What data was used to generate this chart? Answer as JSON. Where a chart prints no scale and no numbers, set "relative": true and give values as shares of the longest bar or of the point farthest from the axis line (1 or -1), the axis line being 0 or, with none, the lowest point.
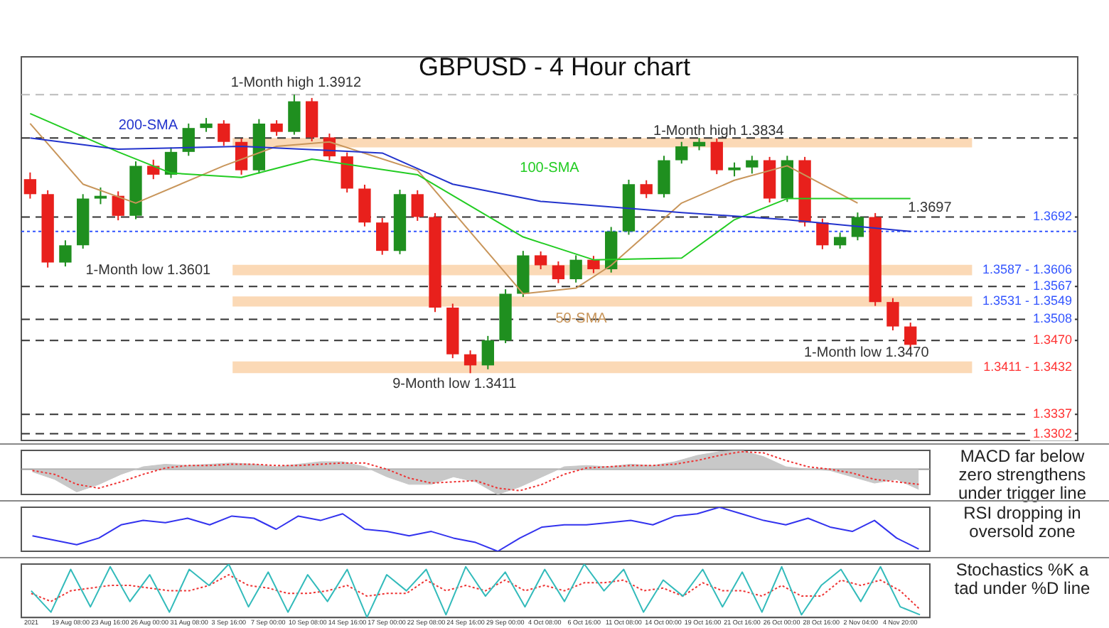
{
  "chart_data": [
    {
      "type": "candlestick",
      "title": "GBPUSD - 4 Hour chart",
      "categories": [
        null,
        null,
        null,
        null,
        null,
        null,
        null,
        null,
        null,
        null,
        null,
        null,
        null,
        null,
        null,
        null,
        null,
        null,
        null,
        null,
        null,
        null,
        null,
        null,
        null,
        null,
        null,
        null,
        null,
        null,
        null,
        null,
        null,
        null,
        null,
        null,
        null,
        null,
        null,
        null,
        null,
        null,
        null,
        null,
        null,
        null,
        null,
        null,
        null,
        null,
        null
      ],
      "ohlc": [
        [
          1.376,
          1.3772,
          1.3725,
          1.3733
        ],
        [
          1.3733,
          1.374,
          1.3601,
          1.361
        ],
        [
          1.361,
          1.365,
          1.3603,
          1.3641
        ],
        [
          1.3641,
          1.3733,
          1.3635,
          1.3725
        ],
        [
          1.3725,
          1.3745,
          1.3715,
          1.373
        ],
        [
          1.373,
          1.3738,
          1.3686,
          1.3694
        ],
        [
          1.3694,
          1.3792,
          1.3688,
          1.3784
        ],
        [
          1.3784,
          1.3795,
          1.376,
          1.3768
        ],
        [
          1.3768,
          1.3817,
          1.3762,
          1.3809
        ],
        [
          1.3809,
          1.386,
          1.3802,
          1.3852
        ],
        [
          1.3852,
          1.387,
          1.3845,
          1.386
        ],
        [
          1.386,
          1.3866,
          1.382,
          1.3827
        ],
        [
          1.3827,
          1.3833,
          1.3768,
          1.3776
        ],
        [
          1.3776,
          1.3868,
          1.377,
          1.386
        ],
        [
          1.386,
          1.3866,
          1.3838,
          1.3845
        ],
        [
          1.3845,
          1.3912,
          1.384,
          1.39
        ],
        [
          1.39,
          1.3906,
          1.3828,
          1.3835
        ],
        [
          1.3835,
          1.3842,
          1.3794,
          1.3801
        ],
        [
          1.3801,
          1.3808,
          1.3736,
          1.3743
        ],
        [
          1.3743,
          1.375,
          1.3675,
          1.3682
        ],
        [
          1.3682,
          1.369,
          1.3624,
          1.3631
        ],
        [
          1.3631,
          1.3741,
          1.3625,
          1.3733
        ],
        [
          1.3733,
          1.374,
          1.3685,
          1.3692
        ],
        [
          1.3692,
          1.3699,
          1.3521,
          1.3529
        ],
        [
          1.3529,
          1.3536,
          1.3438,
          1.3445
        ],
        [
          1.3445,
          1.3452,
          1.3411,
          1.3425
        ],
        [
          1.3425,
          1.3478,
          1.3418,
          1.347
        ],
        [
          1.347,
          1.3562,
          1.3465,
          1.3554
        ],
        [
          1.3554,
          1.3631,
          1.3548,
          1.3623
        ],
        [
          1.3623,
          1.363,
          1.3598,
          1.3605
        ],
        [
          1.3605,
          1.3612,
          1.3573,
          1.358
        ],
        [
          1.358,
          1.3623,
          1.3574,
          1.3615
        ],
        [
          1.3615,
          1.3622,
          1.3591,
          1.3598
        ],
        [
          1.3598,
          1.3674,
          1.3592,
          1.3666
        ],
        [
          1.3666,
          1.3759,
          1.366,
          1.3751
        ],
        [
          1.3751,
          1.3758,
          1.3726,
          1.3733
        ],
        [
          1.3733,
          1.3802,
          1.3727,
          1.3794
        ],
        [
          1.3794,
          1.3827,
          1.3788,
          1.3819
        ],
        [
          1.3819,
          1.3834,
          1.3812,
          1.3827
        ],
        [
          1.3827,
          1.3833,
          1.3769,
          1.3776
        ],
        [
          1.3776,
          1.379,
          1.3765,
          1.3781
        ],
        [
          1.3781,
          1.3802,
          1.377,
          1.3794
        ],
        [
          1.3794,
          1.38,
          1.3718,
          1.3725
        ],
        [
          1.3725,
          1.3802,
          1.3719,
          1.3794
        ],
        [
          1.3794,
          1.38,
          1.3675,
          1.3682
        ],
        [
          1.3682,
          1.3689,
          1.3634,
          1.3641
        ],
        [
          1.3641,
          1.3664,
          1.3635,
          1.3656
        ],
        [
          1.3656,
          1.37,
          1.365,
          1.3692
        ],
        [
          1.3692,
          1.3699,
          1.3532,
          1.3539
        ],
        [
          1.3539,
          1.3546,
          1.3488,
          1.3495
        ],
        [
          1.3495,
          1.3502,
          1.3455,
          1.3462
        ]
      ],
      "colors": [
        "#e8201c",
        "#e8201c",
        "#1f8f1f",
        "#1f8f1f",
        "#1f8f1f",
        "#e8201c",
        "#1f8f1f",
        "#e8201c",
        "#1f8f1f",
        "#1f8f1f",
        "#1f8f1f",
        "#e8201c",
        "#e8201c",
        "#1f8f1f",
        "#e8201c",
        "#1f8f1f",
        "#e8201c",
        "#e8201c",
        "#e8201c",
        "#e8201c",
        "#e8201c",
        "#1f8f1f",
        "#e8201c",
        "#e8201c",
        "#e8201c",
        "#e8201c",
        "#1f8f1f",
        "#1f8f1f",
        "#1f8f1f",
        "#e8201c",
        "#e8201c",
        "#1f8f1f",
        "#e8201c",
        "#1f8f1f",
        "#1f8f1f",
        "#e8201c",
        "#1f8f1f",
        "#1f8f1f",
        "#1f8f1f",
        "#e8201c",
        "#1f8f1f",
        "#1f8f1f",
        "#e8201c",
        "#1f8f1f",
        "#e8201c",
        "#e8201c",
        "#1f8f1f",
        "#1f8f1f",
        "#e8201c",
        "#e8201c",
        "#e8201c"
      ],
      "series": [
        {
          "type": "line",
          "name": "200-SMA",
          "color": "#2233cc",
          "values": [
            1.3834,
            null,
            null,
            null,
            null,
            1.3814,
            null,
            null,
            null,
            null,
            null,
            null,
            1.3819,
            null,
            null,
            null,
            null,
            null,
            null,
            null,
            1.3807,
            null,
            null,
            null,
            1.3751,
            null,
            null,
            null,
            null,
            1.372,
            null,
            null,
            null,
            null,
            null,
            null,
            null,
            1.37,
            null,
            null,
            null,
            null,
            null,
            1.3687,
            null,
            null,
            null,
            null,
            null,
            null,
            1.3666
          ]
        },
        {
          "type": "line",
          "name": "100-SMA",
          "color": "#22cc22",
          "values": [
            1.3878,
            null,
            null,
            null,
            null,
            1.3809,
            null,
            null,
            1.3771,
            null,
            null,
            null,
            1.3763,
            null,
            null,
            null,
            1.3796,
            null,
            null,
            null,
            null,
            null,
            1.3768,
            null,
            null,
            null,
            null,
            null,
            1.3656,
            null,
            null,
            null,
            1.3615,
            null,
            null,
            null,
            null,
            1.3618,
            null,
            null,
            1.3687,
            null,
            null,
            1.3725,
            null,
            null,
            null,
            null,
            null,
            null,
            1.3725
          ]
        },
        {
          "type": "line",
          "name": "50-SMA",
          "color": "#c8955a",
          "values": [
            1.386,
            null,
            null,
            1.3751,
            null,
            null,
            1.3717,
            null,
            null,
            null,
            null,
            1.3784,
            null,
            null,
            1.3819,
            null,
            null,
            1.3827,
            null,
            null,
            null,
            null,
            1.3776,
            null,
            null,
            null,
            null,
            null,
            1.3554,
            null,
            null,
            1.3564,
            null,
            1.3605,
            null,
            null,
            null,
            1.3717,
            null,
            null,
            1.3758,
            null,
            null,
            1.3784,
            null,
            null,
            null,
            1.3717,
            null,
            null,
            null
          ]
        }
      ],
      "ylim": [
        1.329,
        1.398
      ],
      "tick_labels": false,
      "grid": false,
      "legend": false,
      "bands": [
        {
          "axis": "y",
          "from": 1.3817,
          "to": 1.3834,
          "color": "#fbd9b6"
        },
        {
          "axis": "y",
          "from": 1.3587,
          "to": 1.3606,
          "label": "1.3587 - 1.3606",
          "color": "#fbd9b6"
        },
        {
          "axis": "y",
          "from": 1.3531,
          "to": 1.3549,
          "label": "1.3531 - 1.3549",
          "color": "#fbd9b6"
        },
        {
          "axis": "y",
          "from": 1.3411,
          "to": 1.3432,
          "label": "1.3411 - 1.3432",
          "color": "#fbd9b6"
        }
      ],
      "ref_lines": [
        {
          "axis": "y",
          "value": 1.3912,
          "color": "#bbbbbb",
          "line_style": "dashed"
        },
        {
          "axis": "y",
          "value": 1.3834,
          "color": "#333333",
          "line_style": "dashed"
        },
        {
          "axis": "y",
          "value": 1.3692,
          "label": "1.3692",
          "color": "#333333",
          "line_style": "dashed"
        },
        {
          "axis": "y",
          "value": 1.3666,
          "color": "#3355ff",
          "line_style": "dotted"
        },
        {
          "axis": "y",
          "value": 1.3567,
          "label": "1.3567",
          "color": "#333333",
          "line_style": "dashed"
        },
        {
          "axis": "y",
          "value": 1.3508,
          "label": "1.3508",
          "color": "#333333",
          "line_style": "dashed"
        },
        {
          "axis": "y",
          "value": 1.347,
          "label": "1.3470",
          "color": "#333333",
          "line_style": "dashed"
        },
        {
          "axis": "y",
          "value": 1.3337,
          "label": "1.3337",
          "color": "#333333",
          "line_style": "dashed"
        },
        {
          "axis": "y",
          "value": 1.3302,
          "label": "1.3302",
          "color": "#333333",
          "line_style": "dashed"
        }
      ],
      "annotations": [
        "1-Month high 1.3912",
        "1-Month high 1.3834",
        "1-Month low 1.3601",
        "9-Month low 1.3411",
        "1-Month low 1.3470",
        "1.3697"
      ]
    },
    {
      "type": "line",
      "relative": true,
      "categories": [
        null,
        null,
        null,
        null,
        null,
        null,
        null,
        null,
        null,
        null,
        null,
        null,
        null,
        null,
        null,
        null,
        null,
        null,
        null,
        null,
        null,
        null,
        null,
        null,
        null,
        null,
        null,
        null,
        null,
        null,
        null,
        null,
        null,
        null,
        null,
        null,
        null,
        null,
        null,
        null,
        null
      ],
      "series": [
        {
          "type": "area",
          "color": "#c8c8c8",
          "values": [
            -0.1,
            -0.4,
            -0.9,
            -0.6,
            -0.2,
            0.1,
            0.2,
            0.15,
            0.2,
            0.25,
            0.2,
            0.1,
            0.2,
            0.3,
            0.3,
            0.1,
            -0.3,
            -0.6,
            -0.6,
            -0.3,
            -0.5,
            -1,
            -0.7,
            -0.3,
            0.1,
            0.15,
            0.1,
            0.2,
            0.15,
            0.3,
            0.55,
            0.7,
            0.75,
            0.5,
            0.1,
            0,
            -0.05,
            -0.3,
            -0.55,
            -0.4,
            -0.8
          ]
        },
        {
          "type": "line",
          "color": "#ee3333",
          "line_style": "dotted",
          "values": [
            -0.05,
            -0.2,
            -0.6,
            -0.75,
            -0.5,
            -0.2,
            0.05,
            0.15,
            0.15,
            0.2,
            0.2,
            0.15,
            0.15,
            0.2,
            0.25,
            0.25,
            0,
            -0.35,
            -0.55,
            -0.5,
            -0.45,
            -0.75,
            -0.85,
            -0.6,
            -0.2,
            0.05,
            0.1,
            0.15,
            0.15,
            0.2,
            0.35,
            0.55,
            0.7,
            0.65,
            0.35,
            0.1,
            0,
            -0.15,
            -0.4,
            -0.5,
            -0.6
          ]
        }
      ],
      "tick_labels": false,
      "grid": false,
      "legend": false,
      "annotations": [
        "MACD far below zero strengthens under trigger line"
      ]
    },
    {
      "type": "line",
      "relative": true,
      "categories": [
        null,
        null,
        null,
        null,
        null,
        null,
        null,
        null,
        null,
        null,
        null,
        null,
        null,
        null,
        null,
        null,
        null,
        null,
        null,
        null,
        null,
        null,
        null,
        null,
        null,
        null,
        null,
        null,
        null,
        null,
        null,
        null,
        null,
        null,
        null,
        null,
        null,
        null,
        null,
        null,
        null
      ],
      "series": [
        {
          "color": "#3333ee",
          "values": [
            0.35,
            0.25,
            0.15,
            0.3,
            0.6,
            0.7,
            0.65,
            0.75,
            0.6,
            0.8,
            0.75,
            0.5,
            0.8,
            0.7,
            0.85,
            0.5,
            0.45,
            0.35,
            0.45,
            0.3,
            0.2,
            0,
            0.3,
            0.55,
            0.6,
            0.6,
            0.65,
            0.7,
            0.6,
            0.8,
            0.85,
            1,
            0.85,
            0.7,
            0.6,
            0.75,
            0.55,
            0.45,
            0.7,
            0.3,
            0.05
          ]
        }
      ],
      "tick_labels": false,
      "grid": false,
      "legend": false,
      "annotations": [
        "RSI dropping in oversold zone"
      ]
    },
    {
      "type": "line",
      "relative": true,
      "categories": [
        "2021",
        null,
        "19 Aug 08:00",
        null,
        "23 Aug 16:00",
        null,
        "26 Aug 00:00",
        null,
        "31 Aug 08:00",
        null,
        "3 Sep 16:00",
        null,
        "7 Sep 00:00",
        null,
        "10 Sep 08:00",
        null,
        "14 Sep 16:00",
        null,
        "17 Sep 00:00",
        null,
        "22 Sep 08:00",
        null,
        "24 Sep 16:00",
        null,
        "29 Sep 00:00",
        null,
        "4 Oct 08:00",
        null,
        "6 Oct 16:00",
        null,
        "11 Oct 08:00",
        null,
        "14 Oct 00:00",
        null,
        "19 Oct 16:00",
        null,
        "21 Oct 16:00",
        null,
        "26 Oct 00:00",
        null,
        "28 Oct 16:00",
        null,
        "2 Nov 04:00",
        null,
        "4 Nov 20:00",
        null
      ],
      "series": [
        {
          "color": "#33bbbb",
          "values": [
            0.5,
            0.1,
            0.9,
            0.2,
            0.95,
            0.3,
            0.8,
            0.1,
            0.9,
            0.6,
            1,
            0.2,
            0.85,
            0.1,
            0.8,
            0.3,
            0.9,
            0,
            0.8,
            0.5,
            0.9,
            0.05,
            0.95,
            0.4,
            0.85,
            0.2,
            0.9,
            0.3,
            1,
            0.5,
            0.9,
            0.1,
            0.7,
            0.4,
            0.9,
            0.2,
            0.85,
            0.1,
            0.95,
            0.05,
            0.6,
            0.9,
            0.3,
            0.95,
            0.2,
            0.05
          ]
        },
        {
          "color": "#ee3333",
          "line_style": "dotted",
          "values": [
            0.45,
            0.3,
            0.5,
            0.55,
            0.6,
            0.6,
            0.55,
            0.5,
            0.5,
            0.6,
            0.8,
            0.6,
            0.55,
            0.45,
            0.45,
            0.5,
            0.6,
            0.4,
            0.45,
            0.45,
            0.7,
            0.5,
            0.6,
            0.5,
            0.7,
            0.5,
            0.6,
            0.5,
            0.65,
            0.65,
            0.7,
            0.5,
            0.55,
            0.4,
            0.65,
            0.5,
            0.5,
            0.4,
            0.6,
            0.4,
            0.4,
            0.7,
            0.6,
            0.7,
            0.5,
            0.15
          ]
        }
      ],
      "tick_labels": "x",
      "grid": false,
      "legend": false,
      "annotations": [
        "Stochastics %K a tad under %D line"
      ]
    }
  ]
}
